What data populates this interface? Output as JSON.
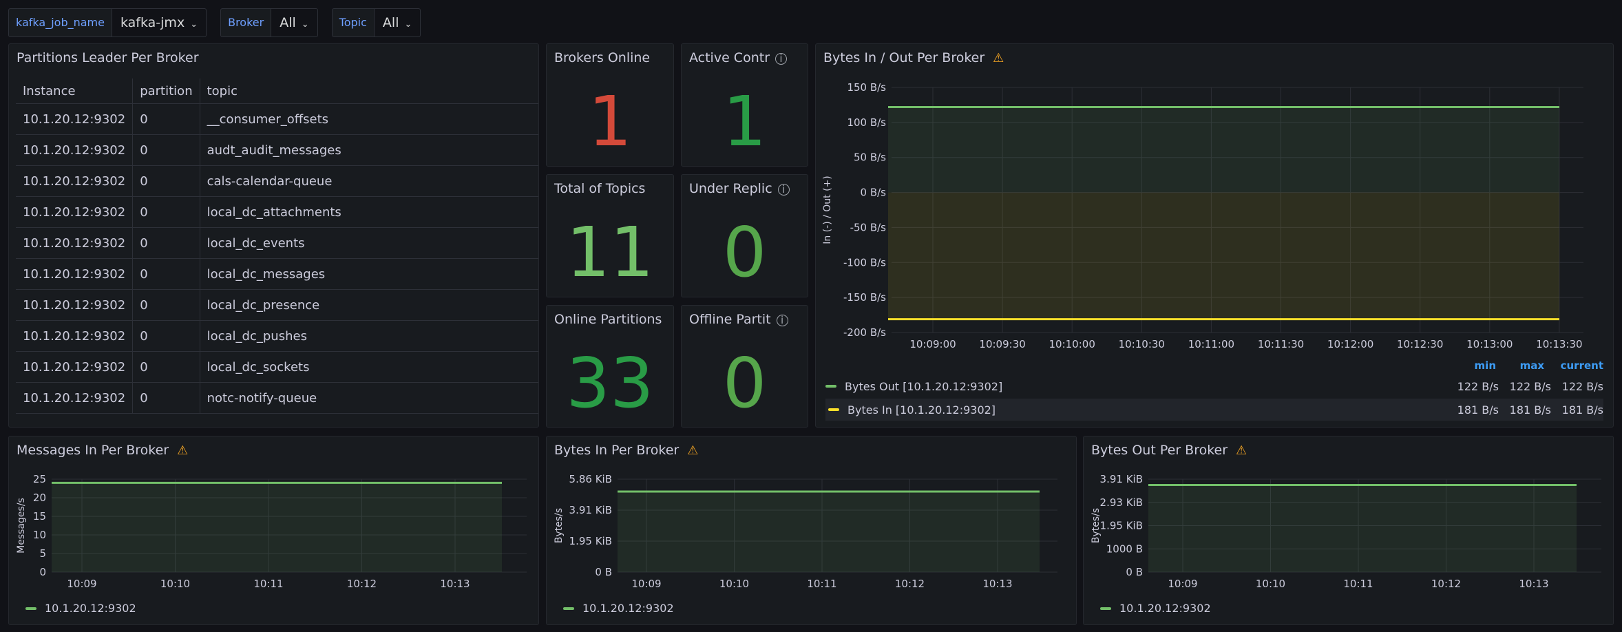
{
  "variables": [
    {
      "label": "kafka_job_name",
      "value": "kafka-jmx"
    },
    {
      "label": "Broker",
      "value": "All"
    },
    {
      "label": "Topic",
      "value": "All"
    }
  ],
  "partitions_panel": {
    "title": "Partitions Leader Per Broker",
    "columns": [
      "Instance",
      "partition",
      "topic"
    ],
    "rows": [
      [
        "10.1.20.12:9302",
        "0",
        "__consumer_offsets"
      ],
      [
        "10.1.20.12:9302",
        "0",
        "audt_audit_messages"
      ],
      [
        "10.1.20.12:9302",
        "0",
        "cals-calendar-queue"
      ],
      [
        "10.1.20.12:9302",
        "0",
        "local_dc_attachments"
      ],
      [
        "10.1.20.12:9302",
        "0",
        "local_dc_events"
      ],
      [
        "10.1.20.12:9302",
        "0",
        "local_dc_messages"
      ],
      [
        "10.1.20.12:9302",
        "0",
        "local_dc_presence"
      ],
      [
        "10.1.20.12:9302",
        "0",
        "local_dc_pushes"
      ],
      [
        "10.1.20.12:9302",
        "0",
        "local_dc_sockets"
      ],
      [
        "10.1.20.12:9302",
        "0",
        "notc-notify-queue"
      ]
    ]
  },
  "stats": [
    {
      "title": "Brokers Online",
      "value": "1",
      "color": "#d44a3a",
      "info": false
    },
    {
      "title": "Active Contr",
      "value": "1",
      "color": "#299c46",
      "info": true
    },
    {
      "title": "Total of Topics",
      "value": "11",
      "color": "#73bf69",
      "info": false
    },
    {
      "title": "Under Replic",
      "value": "0",
      "color": "#56a64b",
      "info": true
    },
    {
      "title": "Online Partitions",
      "value": "33",
      "color": "#299c46",
      "info": false
    },
    {
      "title": "Offline Partit",
      "value": "0",
      "color": "#56a64b",
      "info": true
    }
  ],
  "colors": {
    "green": "#73bf69",
    "yellow": "#fade2a",
    "accent": "#6e9fff",
    "legend_header": "#3d9cf5"
  },
  "chart_data": [
    {
      "type": "line",
      "title": "Bytes In / Out Per Broker",
      "ylabel": "In (-) / Out (+)",
      "x": [
        "10:09:00",
        "10:09:30",
        "10:10:00",
        "10:10:30",
        "10:11:00",
        "10:11:30",
        "10:12:00",
        "10:12:30",
        "10:13:00",
        "10:13:30"
      ],
      "yticks": [
        "150 B/s",
        "100 B/s",
        "50 B/s",
        "0 B/s",
        "-50 B/s",
        "-100 B/s",
        "-150 B/s",
        "-200 B/s"
      ],
      "ylim": [
        -200,
        150
      ],
      "series": [
        {
          "name": "Bytes Out [10.1.20.12:9302]",
          "values": [
            122,
            122,
            122,
            122,
            122,
            122,
            122,
            122,
            122,
            122
          ],
          "color": "#73bf69",
          "min": "122 B/s",
          "max": "122 B/s",
          "current": "122 B/s"
        },
        {
          "name": "Bytes In [10.1.20.12:9302]",
          "values": [
            -181,
            -181,
            -181,
            -181,
            -181,
            -181,
            -181,
            -181,
            -181,
            -181
          ],
          "color": "#fade2a",
          "min": "181 B/s",
          "max": "181 B/s",
          "current": "181 B/s"
        }
      ],
      "legend_headers": [
        "min",
        "max",
        "current"
      ]
    },
    {
      "type": "area",
      "title": "Messages In Per Broker",
      "ylabel": "Messages/s",
      "x": [
        "10:09",
        "10:10",
        "10:11",
        "10:12",
        "10:13"
      ],
      "yticks": [
        "25",
        "20",
        "15",
        "10",
        "5",
        "0"
      ],
      "ylim": [
        0,
        25
      ],
      "series": [
        {
          "name": "10.1.20.12:9302",
          "values": [
            24,
            24,
            24,
            24,
            24
          ]
        }
      ]
    },
    {
      "type": "area",
      "title": "Bytes In Per Broker",
      "ylabel": "Bytes/s",
      "x": [
        "10:09",
        "10:10",
        "10:11",
        "10:12",
        "10:13"
      ],
      "yticks": [
        "5.86 KiB",
        "3.91 KiB",
        "1.95 KiB",
        "0 B"
      ],
      "ylim": [
        0,
        6000
      ],
      "series": [
        {
          "name": "10.1.20.12:9302",
          "values": [
            5200,
            5200,
            5200,
            5200,
            5200
          ]
        }
      ]
    },
    {
      "type": "area",
      "title": "Bytes Out Per Broker",
      "ylabel": "Bytes/s",
      "x": [
        "10:09",
        "10:10",
        "10:11",
        "10:12",
        "10:13"
      ],
      "yticks": [
        "3.91 KiB",
        "2.93 KiB",
        "1.95 KiB",
        "1000 B",
        "0 B"
      ],
      "ylim": [
        0,
        4000
      ],
      "series": [
        {
          "name": "10.1.20.12:9302",
          "values": [
            3750,
            3750,
            3750,
            3750,
            3750
          ]
        }
      ]
    }
  ]
}
